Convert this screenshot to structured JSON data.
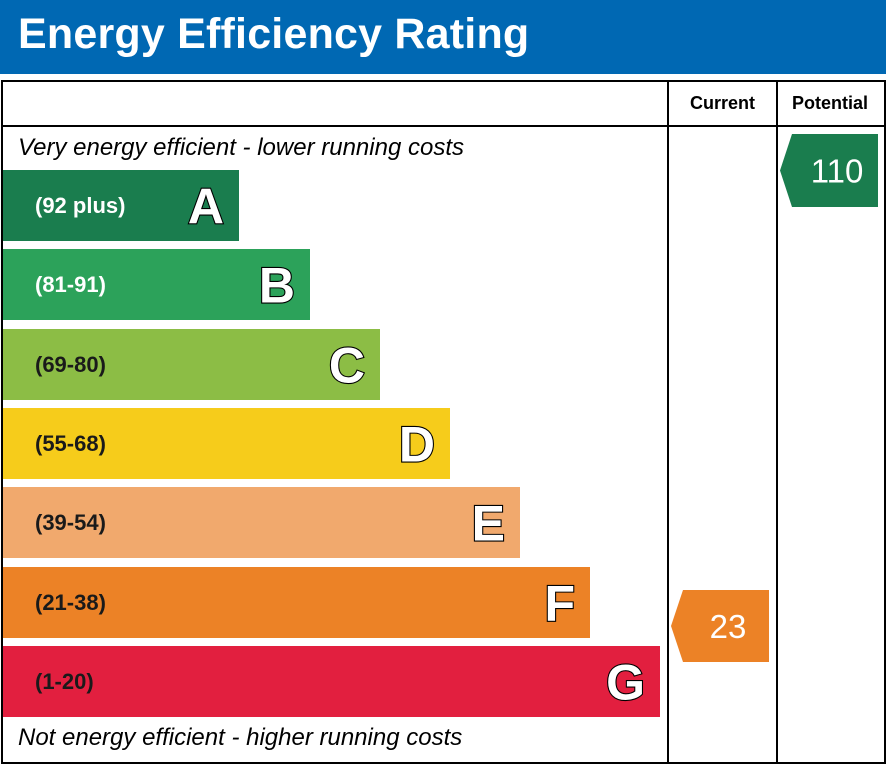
{
  "title": "Energy Efficiency Rating",
  "columns": {
    "current": "Current",
    "potential": "Potential"
  },
  "top_note": "Very energy efficient - lower running costs",
  "bottom_note": "Not energy efficient - higher running costs",
  "chart_data": {
    "type": "bar",
    "categories": [
      "A",
      "B",
      "C",
      "D",
      "E",
      "F",
      "G"
    ],
    "bands": [
      {
        "letter": "A",
        "range": "(92 plus)",
        "color": "#1a7d4e",
        "text_color": "#ffffff"
      },
      {
        "letter": "B",
        "range": "(81-91)",
        "color": "#2ca25a",
        "text_color": "#ffffff"
      },
      {
        "letter": "C",
        "range": "(69-80)",
        "color": "#8cbd45",
        "text_color": "#1a1a1a"
      },
      {
        "letter": "D",
        "range": "(55-68)",
        "color": "#f6cc1b",
        "text_color": "#1a1a1a"
      },
      {
        "letter": "E",
        "range": "(39-54)",
        "color": "#f1a96d",
        "text_color": "#1a1a1a"
      },
      {
        "letter": "F",
        "range": "(21-38)",
        "color": "#ec8226",
        "text_color": "#1a1a1a"
      },
      {
        "letter": "G",
        "range": "(1-20)",
        "color": "#e21f3f",
        "text_color": "#1a1a1a"
      }
    ],
    "current": {
      "value": 23,
      "band": "F",
      "color": "#ec8226"
    },
    "potential": {
      "value": 110,
      "band": "A",
      "color": "#1a7d4e"
    }
  }
}
